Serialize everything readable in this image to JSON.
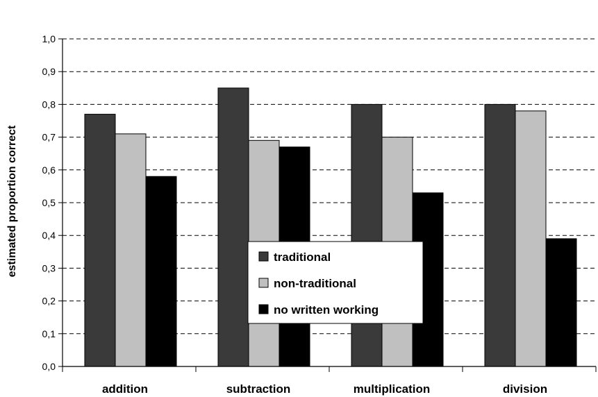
{
  "chart_data": {
    "type": "bar",
    "ylabel": "estimated proportion correct",
    "xlabel": "",
    "categories": [
      "addition",
      "subtraction",
      "multiplication",
      "division"
    ],
    "ylim": [
      0.0,
      1.0
    ],
    "yticks": [
      "0,0",
      "0,1",
      "0,2",
      "0,3",
      "0,4",
      "0,5",
      "0,6",
      "0,7",
      "0,8",
      "0,9",
      "1,0"
    ],
    "grid": "horizontal dashed",
    "legend_position": "center-bottom",
    "series": [
      {
        "name": "traditional",
        "color": "#3a3a3a",
        "values": [
          0.77,
          0.85,
          0.8,
          0.8
        ]
      },
      {
        "name": "non-traditional",
        "color": "#c0c0c0",
        "values": [
          0.71,
          0.69,
          0.7,
          0.78
        ]
      },
      {
        "name": "no written working",
        "color": "#000000",
        "values": [
          0.58,
          0.67,
          0.53,
          0.39
        ]
      }
    ]
  }
}
